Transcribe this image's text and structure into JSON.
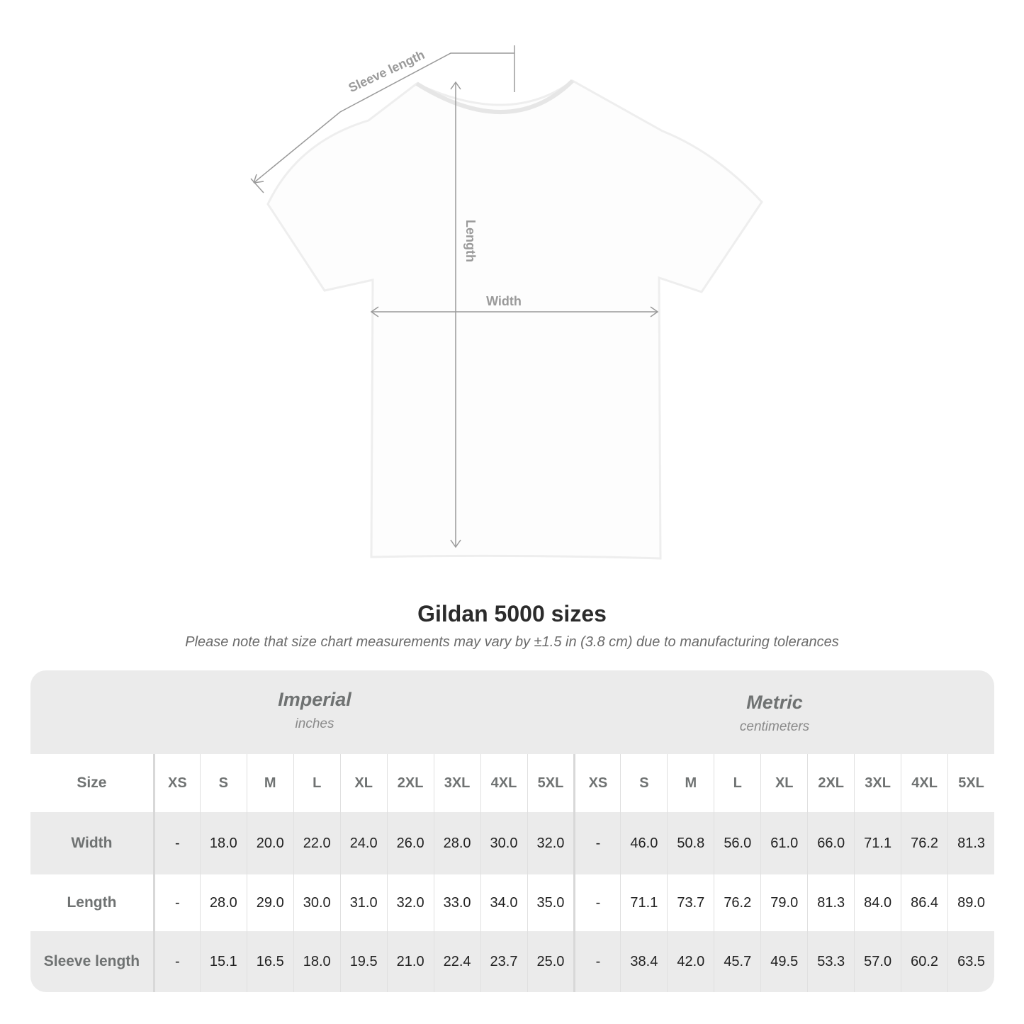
{
  "diagram": {
    "sleeve_label": "Sleeve length",
    "length_label": "Length",
    "width_label": "Width"
  },
  "title": "Gildan 5000 sizes",
  "note": "Please note that size chart measurements may vary by ±1.5 in (3.8 cm) due to manufacturing tolerances",
  "imperial": {
    "name": "Imperial",
    "unit": "inches"
  },
  "metric": {
    "name": "Metric",
    "unit": "centimeters"
  },
  "table": {
    "header_label": "Size",
    "sizes": [
      "XS",
      "S",
      "M",
      "L",
      "XL",
      "2XL",
      "3XL",
      "4XL",
      "5XL"
    ],
    "rows": [
      {
        "label": "Width",
        "imperial": [
          "-",
          "18.0",
          "20.0",
          "22.0",
          "24.0",
          "26.0",
          "28.0",
          "30.0",
          "32.0"
        ],
        "metric": [
          "-",
          "46.0",
          "50.8",
          "56.0",
          "61.0",
          "66.0",
          "71.1",
          "76.2",
          "81.3"
        ]
      },
      {
        "label": "Length",
        "imperial": [
          "-",
          "28.0",
          "29.0",
          "30.0",
          "31.0",
          "32.0",
          "33.0",
          "34.0",
          "35.0"
        ],
        "metric": [
          "-",
          "71.1",
          "73.7",
          "76.2",
          "79.0",
          "81.3",
          "84.0",
          "86.4",
          "89.0"
        ]
      },
      {
        "label": "Sleeve length",
        "imperial": [
          "-",
          "15.1",
          "16.5",
          "18.0",
          "19.5",
          "21.0",
          "22.4",
          "23.7",
          "25.0"
        ],
        "metric": [
          "-",
          "38.4",
          "42.0",
          "45.7",
          "49.5",
          "53.3",
          "57.0",
          "60.2",
          "63.5"
        ]
      }
    ]
  },
  "colors": {
    "measure_line": "#9a9a9a",
    "band_gray": "#ebebeb",
    "header_text": "#6f7272"
  }
}
